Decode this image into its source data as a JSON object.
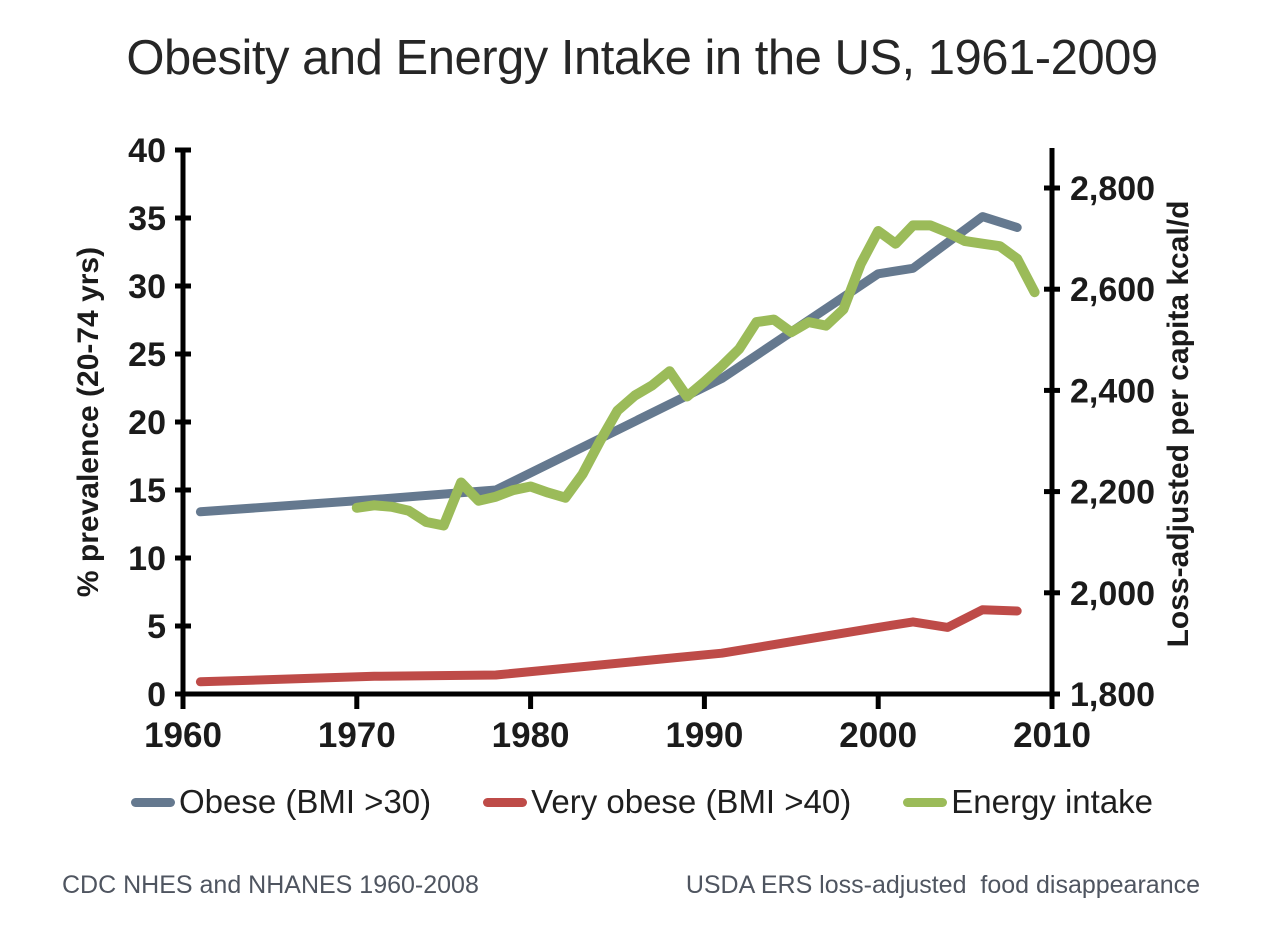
{
  "title": "Obesity and Energy Intake in the US, 1961-2009",
  "footnotes": {
    "left": "CDC NHES and NHANES 1960-2008",
    "right": "USDA ERS loss-adjusted  food disappearance"
  },
  "chart_data": {
    "type": "line",
    "title": "Obesity and Energy Intake in the US, 1961-2009",
    "grid": false,
    "legend_position": "bottom",
    "background_color": "#ffffff",
    "axis_color": "#000000",
    "x_axis": {
      "min": 1960,
      "max": 2010,
      "ticks": [
        1960,
        1970,
        1980,
        1990,
        2000,
        2010
      ]
    },
    "y_left": {
      "label": "% prevalence (20-74 yrs)",
      "min": 0,
      "max": 40,
      "ticks": [
        0,
        5,
        10,
        15,
        20,
        25,
        30,
        35,
        40
      ]
    },
    "y_right": {
      "label": "Loss-adjusted per capita kcal/d",
      "min": 1800,
      "max": 2800,
      "ticks": [
        {
          "value": 1800,
          "label": "1,800"
        },
        {
          "value": 2000,
          "label": "2,000"
        },
        {
          "value": 2200,
          "label": "2,200"
        },
        {
          "value": 2400,
          "label": "2,400"
        },
        {
          "value": 2600,
          "label": "2,600"
        },
        {
          "value": 2800,
          "label": "2,800"
        }
      ]
    },
    "series": [
      {
        "name": "Obese (BMI >30)",
        "axis": "left",
        "color": "#65798F",
        "stroke_width": 9,
        "points": [
          [
            1961,
            13.4
          ],
          [
            1971,
            14.3
          ],
          [
            1978,
            15.0
          ],
          [
            1991,
            23.2
          ],
          [
            2000,
            30.9
          ],
          [
            2002,
            31.3
          ],
          [
            2006,
            35.1
          ],
          [
            2008,
            34.3
          ]
        ]
      },
      {
        "name": "Very obese (BMI >40)",
        "axis": "left",
        "color": "#BE4B48",
        "stroke_width": 9,
        "points": [
          [
            1961,
            0.9
          ],
          [
            1971,
            1.3
          ],
          [
            1978,
            1.4
          ],
          [
            1991,
            3.0
          ],
          [
            2000,
            4.9
          ],
          [
            2002,
            5.3
          ],
          [
            2004,
            4.9
          ],
          [
            2006,
            6.2
          ],
          [
            2008,
            6.1
          ]
        ]
      },
      {
        "name": "Energy intake",
        "axis": "right",
        "color": "#9BBB59",
        "stroke_width": 10,
        "points": [
          [
            1970,
            2168
          ],
          [
            1971,
            2173
          ],
          [
            1972,
            2170
          ],
          [
            1973,
            2162
          ],
          [
            1974,
            2140
          ],
          [
            1975,
            2133
          ],
          [
            1976,
            2218
          ],
          [
            1977,
            2182
          ],
          [
            1978,
            2190
          ],
          [
            1979,
            2203
          ],
          [
            1980,
            2210
          ],
          [
            1981,
            2198
          ],
          [
            1982,
            2188
          ],
          [
            1983,
            2235
          ],
          [
            1984,
            2300
          ],
          [
            1985,
            2360
          ],
          [
            1986,
            2390
          ],
          [
            1987,
            2410
          ],
          [
            1988,
            2438
          ],
          [
            1989,
            2388
          ],
          [
            1990,
            2417
          ],
          [
            1991,
            2448
          ],
          [
            1992,
            2482
          ],
          [
            1993,
            2535
          ],
          [
            1994,
            2540
          ],
          [
            1995,
            2515
          ],
          [
            1996,
            2535
          ],
          [
            1997,
            2528
          ],
          [
            1998,
            2560
          ],
          [
            1999,
            2650
          ],
          [
            2000,
            2715
          ],
          [
            2001,
            2690
          ],
          [
            2002,
            2726
          ],
          [
            2003,
            2726
          ],
          [
            2004,
            2712
          ],
          [
            2005,
            2695
          ],
          [
            2006,
            2690
          ],
          [
            2007,
            2685
          ],
          [
            2008,
            2660
          ],
          [
            2009,
            2594
          ]
        ]
      }
    ]
  }
}
